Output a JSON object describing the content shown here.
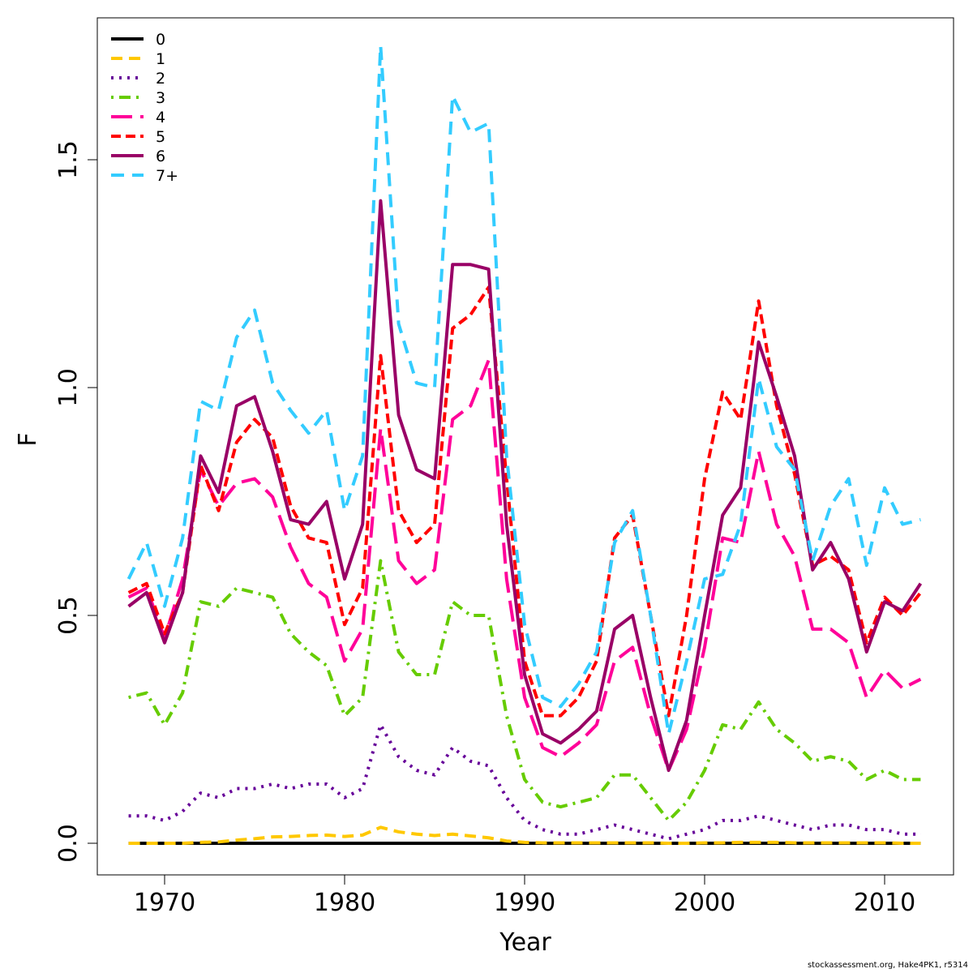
{
  "chart_data": {
    "type": "line",
    "title": "",
    "xlabel": "Year",
    "ylabel": "F",
    "xlim": [
      1966,
      2014
    ],
    "ylim": [
      -0.07,
      1.81
    ],
    "xticks": [
      1970,
      1980,
      1990,
      2000,
      2010
    ],
    "yticks": [
      0.0,
      0.5,
      1.0,
      1.5
    ],
    "ytick_labels": [
      "0.0",
      "0.5",
      "1.0",
      "1.5"
    ],
    "grid": false,
    "legend_position": "top-left",
    "x": [
      1968,
      1969,
      1970,
      1971,
      1972,
      1973,
      1974,
      1975,
      1976,
      1977,
      1978,
      1979,
      1980,
      1981,
      1982,
      1983,
      1984,
      1985,
      1986,
      1987,
      1988,
      1989,
      1990,
      1991,
      1992,
      1993,
      1994,
      1995,
      1996,
      1997,
      1998,
      1999,
      2000,
      2001,
      2002,
      2003,
      2004,
      2005,
      2006,
      2007,
      2008,
      2009,
      2010,
      2011,
      2012
    ],
    "series": [
      {
        "name": "0",
        "color": "#000000",
        "dash": "",
        "values": [
          0,
          0,
          0,
          0,
          0,
          0,
          0,
          0,
          0,
          0,
          0,
          0,
          0,
          0,
          0,
          0,
          0,
          0,
          0,
          0,
          0,
          0,
          0,
          0,
          0,
          0,
          0,
          0,
          0,
          0,
          0,
          0,
          0,
          0,
          0,
          0,
          0,
          0,
          0,
          0,
          0,
          0,
          0,
          0,
          0
        ]
      },
      {
        "name": "1",
        "color": "#FFC800",
        "dash": "14,8",
        "values": [
          0,
          0,
          0,
          0,
          0.002,
          0.003,
          0.007,
          0.01,
          0.014,
          0.015,
          0.017,
          0.018,
          0.015,
          0.018,
          0.035,
          0.025,
          0.02,
          0.017,
          0.02,
          0.016,
          0.012,
          0.005,
          0.002,
          0.001,
          0.001,
          0.001,
          0.001,
          0.001,
          0.001,
          0.001,
          0,
          0,
          0.001,
          0.001,
          0.002,
          0.002,
          0.002,
          0.001,
          0.001,
          0.001,
          0.001,
          0.001,
          0.001,
          0,
          0
        ]
      },
      {
        "name": "2",
        "color": "#660099",
        "dash": "3,7",
        "values": [
          0.06,
          0.06,
          0.05,
          0.07,
          0.11,
          0.1,
          0.12,
          0.12,
          0.13,
          0.12,
          0.13,
          0.13,
          0.1,
          0.12,
          0.26,
          0.19,
          0.16,
          0.15,
          0.21,
          0.18,
          0.17,
          0.1,
          0.05,
          0.03,
          0.02,
          0.02,
          0.03,
          0.04,
          0.03,
          0.02,
          0.01,
          0.02,
          0.03,
          0.05,
          0.05,
          0.06,
          0.05,
          0.04,
          0.03,
          0.04,
          0.04,
          0.03,
          0.03,
          0.02,
          0.02
        ]
      },
      {
        "name": "3",
        "color": "#66CC00",
        "dash": "3,7,14,7",
        "values": [
          0.32,
          0.33,
          0.26,
          0.33,
          0.53,
          0.52,
          0.56,
          0.55,
          0.54,
          0.46,
          0.42,
          0.39,
          0.28,
          0.32,
          0.62,
          0.42,
          0.37,
          0.37,
          0.53,
          0.5,
          0.5,
          0.28,
          0.14,
          0.09,
          0.08,
          0.09,
          0.1,
          0.15,
          0.15,
          0.1,
          0.05,
          0.09,
          0.16,
          0.26,
          0.25,
          0.31,
          0.25,
          0.22,
          0.18,
          0.19,
          0.18,
          0.14,
          0.16,
          0.14,
          0.14
        ]
      },
      {
        "name": "4",
        "color": "#FF0099",
        "dash": "26,10",
        "values": [
          0.54,
          0.56,
          0.45,
          0.58,
          0.82,
          0.74,
          0.79,
          0.8,
          0.76,
          0.65,
          0.57,
          0.54,
          0.4,
          0.47,
          0.91,
          0.62,
          0.57,
          0.6,
          0.93,
          0.96,
          1.06,
          0.58,
          0.32,
          0.21,
          0.19,
          0.22,
          0.26,
          0.4,
          0.43,
          0.28,
          0.16,
          0.25,
          0.43,
          0.67,
          0.66,
          0.86,
          0.7,
          0.63,
          0.47,
          0.47,
          0.44,
          0.32,
          0.38,
          0.34,
          0.36
        ]
      },
      {
        "name": "5",
        "color": "#FF0000",
        "dash": "12,6",
        "values": [
          0.55,
          0.57,
          0.46,
          0.55,
          0.83,
          0.73,
          0.88,
          0.93,
          0.89,
          0.74,
          0.67,
          0.66,
          0.48,
          0.56,
          1.07,
          0.73,
          0.66,
          0.7,
          1.13,
          1.16,
          1.22,
          0.8,
          0.4,
          0.28,
          0.28,
          0.32,
          0.4,
          0.67,
          0.72,
          0.5,
          0.28,
          0.5,
          0.8,
          0.99,
          0.93,
          1.19,
          0.96,
          0.81,
          0.61,
          0.63,
          0.6,
          0.44,
          0.54,
          0.5,
          0.55
        ]
      },
      {
        "name": "6",
        "color": "#990066",
        "dash": "",
        "values": [
          0.52,
          0.55,
          0.44,
          0.55,
          0.85,
          0.77,
          0.96,
          0.98,
          0.86,
          0.71,
          0.7,
          0.75,
          0.58,
          0.7,
          1.41,
          0.94,
          0.82,
          0.8,
          1.27,
          1.27,
          1.26,
          0.7,
          0.37,
          0.24,
          0.22,
          0.25,
          0.29,
          0.47,
          0.5,
          0.32,
          0.16,
          0.27,
          0.5,
          0.72,
          0.78,
          1.1,
          0.98,
          0.85,
          0.6,
          0.66,
          0.58,
          0.42,
          0.53,
          0.51,
          0.57
        ]
      },
      {
        "name": "7+",
        "color": "#33CCFF",
        "dash": "16,10",
        "values": [
          0.58,
          0.66,
          0.52,
          0.67,
          0.97,
          0.95,
          1.11,
          1.17,
          1.01,
          0.95,
          0.9,
          0.95,
          0.73,
          0.85,
          1.75,
          1.14,
          1.01,
          1.0,
          1.64,
          1.56,
          1.58,
          0.85,
          0.48,
          0.32,
          0.3,
          0.35,
          0.42,
          0.66,
          0.73,
          0.5,
          0.24,
          0.4,
          0.58,
          0.59,
          0.7,
          1.02,
          0.87,
          0.82,
          0.62,
          0.74,
          0.8,
          0.61,
          0.78,
          0.7,
          0.71
        ]
      }
    ]
  },
  "footer": {
    "credit": "stockassessment.org, Hake4PK1, r5314"
  }
}
